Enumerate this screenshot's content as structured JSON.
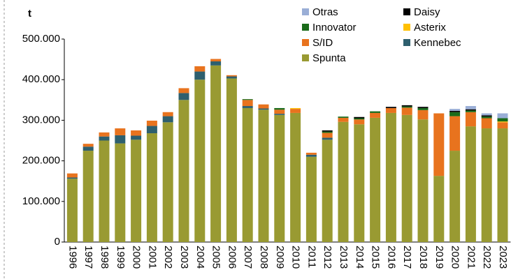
{
  "chart_data": {
    "type": "stacked_bar",
    "y_label": "t",
    "categories": [
      "1996",
      "1997",
      "1998",
      "1999",
      "2000",
      "2001",
      "2002",
      "2003",
      "2004",
      "2005",
      "2006",
      "2007",
      "2008",
      "2009",
      "2010",
      "2011",
      "2012",
      "2013",
      "2014",
      "2015",
      "2016",
      "2017",
      "2018",
      "2019",
      "2020",
      "2021",
      "2022",
      "2023"
    ],
    "series": [
      {
        "name": "Otras",
        "color": "#9aaed6",
        "values": [
          0,
          0,
          0,
          0,
          0,
          0,
          0,
          0,
          0,
          0,
          0,
          0,
          0,
          0,
          0,
          0,
          0,
          0,
          0,
          0,
          0,
          0,
          0,
          0,
          5000,
          8000,
          5000,
          12000
        ]
      },
      {
        "name": "Daisy",
        "color": "#000000",
        "values": [
          0,
          0,
          0,
          0,
          0,
          0,
          0,
          0,
          0,
          0,
          0,
          0,
          0,
          0,
          0,
          0,
          3000,
          0,
          3000,
          0,
          3000,
          3000,
          3000,
          0,
          3000,
          3000,
          3000,
          0
        ]
      },
      {
        "name": "Innovator",
        "color": "#1a6b1a",
        "values": [
          0,
          0,
          0,
          0,
          0,
          0,
          0,
          0,
          0,
          0,
          0,
          2000,
          0,
          4000,
          0,
          0,
          3000,
          3000,
          3000,
          4000,
          0,
          3000,
          5000,
          0,
          10000,
          4000,
          4000,
          8000
        ]
      },
      {
        "name": "Asterix",
        "color": "#ffc000",
        "values": [
          0,
          0,
          0,
          0,
          0,
          0,
          0,
          0,
          0,
          0,
          0,
          0,
          0,
          0,
          2000,
          0,
          0,
          0,
          0,
          0,
          0,
          0,
          0,
          0,
          0,
          0,
          0,
          2000
        ]
      },
      {
        "name": "S/ID",
        "color": "#e8731e",
        "values": [
          10000,
          7000,
          10000,
          17000,
          13000,
          13000,
          10000,
          12000,
          13000,
          6000,
          3000,
          15000,
          10000,
          10000,
          10000,
          5000,
          12000,
          10000,
          12000,
          12000,
          12000,
          18000,
          23000,
          154000,
          85000,
          35000,
          25000,
          15000
        ]
      },
      {
        "name": "Kennebec",
        "color": "#2e5f6e",
        "values": [
          3000,
          10000,
          10000,
          20000,
          10000,
          18000,
          15000,
          17000,
          20000,
          10000,
          5000,
          5000,
          3000,
          3000,
          0,
          5000,
          5000,
          0,
          0,
          0,
          0,
          0,
          0,
          0,
          0,
          0,
          0,
          0
        ]
      },
      {
        "name": "Spunta",
        "color": "#999a32",
        "values": [
          156000,
          225000,
          250000,
          243000,
          252000,
          268000,
          295000,
          350000,
          400000,
          435000,
          403000,
          330000,
          326000,
          313000,
          318000,
          210000,
          252000,
          296000,
          290000,
          306000,
          318000,
          313000,
          302000,
          163000,
          225000,
          285000,
          280000,
          280000
        ]
      }
    ],
    "ylim": [
      0,
      500000
    ],
    "yticks": [
      0,
      {
        "value": 100000,
        "label": "100.000"
      },
      {
        "value": 200000,
        "label": "200.000"
      },
      {
        "value": 300000,
        "label": "300.000"
      },
      {
        "value": 400000,
        "label": "400.000"
      },
      {
        "value": 500000,
        "label": "500.000"
      }
    ]
  }
}
